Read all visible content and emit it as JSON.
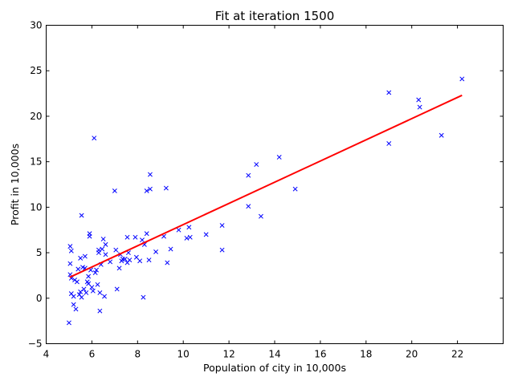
{
  "chart_data": {
    "type": "scatter",
    "title": "Fit at iteration 1500",
    "xlabel": "Population of city in 10,000s",
    "ylabel": "Profit in 10,000s",
    "xlim": [
      4,
      24
    ],
    "ylim": [
      -5,
      30
    ],
    "xticks": [
      4,
      6,
      8,
      10,
      12,
      14,
      16,
      18,
      20,
      22
    ],
    "yticks": [
      -5,
      0,
      5,
      10,
      15,
      20,
      25,
      30
    ],
    "grid": false,
    "series": [
      {
        "type": "scatter",
        "marker": "x",
        "color": "#0000ff",
        "points": [
          [
            5.0,
            -2.7
          ],
          [
            5.05,
            3.8
          ],
          [
            5.05,
            5.7
          ],
          [
            5.1,
            5.2
          ],
          [
            5.05,
            2.6
          ],
          [
            5.1,
            2.2
          ],
          [
            5.1,
            0.5
          ],
          [
            5.2,
            0.2
          ],
          [
            5.2,
            -0.7
          ],
          [
            5.3,
            -1.2
          ],
          [
            5.25,
            2.0
          ],
          [
            5.35,
            1.8
          ],
          [
            5.4,
            3.2
          ],
          [
            5.45,
            0.4
          ],
          [
            5.5,
            0.7
          ],
          [
            5.55,
            0.1
          ],
          [
            5.5,
            4.4
          ],
          [
            5.55,
            9.1
          ],
          [
            5.6,
            3.4
          ],
          [
            5.65,
            1.0
          ],
          [
            5.7,
            4.6
          ],
          [
            5.7,
            3.3
          ],
          [
            5.75,
            0.6
          ],
          [
            5.8,
            1.8
          ],
          [
            5.85,
            2.4
          ],
          [
            5.85,
            1.6
          ],
          [
            5.9,
            7.1
          ],
          [
            5.9,
            6.8
          ],
          [
            5.95,
            3.1
          ],
          [
            6.0,
            1.2
          ],
          [
            6.05,
            0.8
          ],
          [
            6.1,
            17.6
          ],
          [
            6.15,
            2.8
          ],
          [
            6.2,
            3.1
          ],
          [
            6.25,
            1.5
          ],
          [
            6.3,
            5.0
          ],
          [
            6.3,
            5.3
          ],
          [
            6.35,
            -1.4
          ],
          [
            6.35,
            0.6
          ],
          [
            6.4,
            3.7
          ],
          [
            6.45,
            5.4
          ],
          [
            6.5,
            6.5
          ],
          [
            6.55,
            0.2
          ],
          [
            6.6,
            5.9
          ],
          [
            6.6,
            4.8
          ],
          [
            6.8,
            4.0
          ],
          [
            7.0,
            11.8
          ],
          [
            7.05,
            5.3
          ],
          [
            7.1,
            1.0
          ],
          [
            7.2,
            3.3
          ],
          [
            7.25,
            4.8
          ],
          [
            7.3,
            4.1
          ],
          [
            7.35,
            4.3
          ],
          [
            7.45,
            4.3
          ],
          [
            7.55,
            6.7
          ],
          [
            7.55,
            3.9
          ],
          [
            7.6,
            5.0
          ],
          [
            7.65,
            4.2
          ],
          [
            7.9,
            6.7
          ],
          [
            7.95,
            4.5
          ],
          [
            8.1,
            4.1
          ],
          [
            8.2,
            6.4
          ],
          [
            8.25,
            0.1
          ],
          [
            8.3,
            5.9
          ],
          [
            8.4,
            7.1
          ],
          [
            8.4,
            11.8
          ],
          [
            8.5,
            4.2
          ],
          [
            8.55,
            13.6
          ],
          [
            8.55,
            12.0
          ],
          [
            8.8,
            5.1
          ],
          [
            9.15,
            6.8
          ],
          [
            9.25,
            12.1
          ],
          [
            9.3,
            3.9
          ],
          [
            9.45,
            5.4
          ],
          [
            9.8,
            7.5
          ],
          [
            10.15,
            6.6
          ],
          [
            10.25,
            7.8
          ],
          [
            10.3,
            6.7
          ],
          [
            11.0,
            7.0
          ],
          [
            11.7,
            8.0
          ],
          [
            11.7,
            5.3
          ],
          [
            12.85,
            13.5
          ],
          [
            12.85,
            10.1
          ],
          [
            13.2,
            14.7
          ],
          [
            13.4,
            9.0
          ],
          [
            14.2,
            15.5
          ],
          [
            14.9,
            12.0
          ],
          [
            19.0,
            22.6
          ],
          [
            19.0,
            17.0
          ],
          [
            20.3,
            21.8
          ],
          [
            20.35,
            21.0
          ],
          [
            21.3,
            17.9
          ],
          [
            22.2,
            24.1
          ]
        ]
      },
      {
        "type": "line",
        "color": "#ff0000",
        "x": [
          5.03,
          22.2
        ],
        "y": [
          2.3,
          22.3
        ]
      }
    ]
  }
}
